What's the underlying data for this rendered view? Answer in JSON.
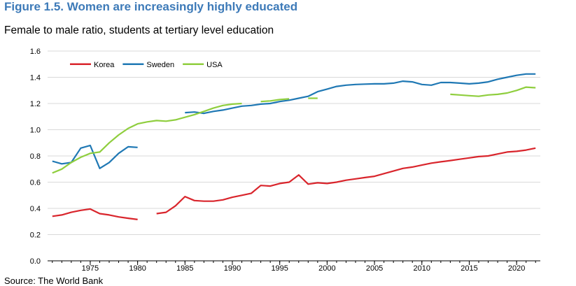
{
  "figure_title": "Figure 1.5. Women are increasingly highly educated",
  "subtitle": "Female to male ratio, students at tertiary level education",
  "source": "Source: The World Bank",
  "colors": {
    "Korea": "#d9252c",
    "Sweden": "#1f78b4",
    "USA": "#8fce3e",
    "grid": "#d9d9d9",
    "title": "#3d7ab8"
  },
  "chart_data": {
    "type": "line",
    "title": "Female to male ratio, students at tertiary level education",
    "xlabel": "",
    "ylabel": "",
    "xlim": [
      1971,
      2022
    ],
    "ylim": [
      0,
      1.6
    ],
    "yticks": [
      "0.0",
      "0.2",
      "0.4",
      "0.6",
      "0.8",
      "1.0",
      "1.2",
      "1.4",
      "1.6"
    ],
    "xticks": [
      "1975",
      "1980",
      "1985",
      "1990",
      "1995",
      "2000",
      "2005",
      "2010",
      "2015",
      "2020"
    ],
    "grid": true,
    "legend": "top-left",
    "series": [
      {
        "name": "Korea",
        "segments": [
          {
            "x": [
              1971,
              1972,
              1973,
              1974,
              1975,
              1976,
              1977,
              1978,
              1979,
              1980
            ],
            "y": [
              0.34,
              0.35,
              0.37,
              0.385,
              0.395,
              0.36,
              0.35,
              0.335,
              0.325,
              0.315
            ]
          },
          {
            "x": [
              1982,
              1983,
              1984,
              1985,
              1986,
              1987,
              1988,
              1989,
              1990,
              1991,
              1992,
              1993,
              1994,
              1995,
              1996,
              1997,
              1998,
              1999,
              2000,
              2001,
              2002,
              2003,
              2004,
              2005,
              2006,
              2007,
              2008,
              2009,
              2010,
              2011,
              2012,
              2013,
              2014,
              2015,
              2016,
              2017,
              2018,
              2019,
              2020,
              2021,
              2022
            ],
            "y": [
              0.36,
              0.37,
              0.42,
              0.49,
              0.46,
              0.455,
              0.455,
              0.465,
              0.485,
              0.5,
              0.515,
              0.575,
              0.57,
              0.59,
              0.6,
              0.655,
              0.585,
              0.595,
              0.59,
              0.6,
              0.615,
              0.625,
              0.635,
              0.645,
              0.665,
              0.685,
              0.705,
              0.715,
              0.73,
              0.745,
              0.755,
              0.765,
              0.775,
              0.785,
              0.795,
              0.8,
              0.815,
              0.83,
              0.835,
              0.845,
              0.86
            ]
          }
        ]
      },
      {
        "name": "Sweden",
        "segments": [
          {
            "x": [
              1971,
              1972,
              1973,
              1974,
              1975,
              1976,
              1977,
              1978,
              1979,
              1980
            ],
            "y": [
              0.76,
              0.74,
              0.75,
              0.86,
              0.88,
              0.705,
              0.75,
              0.82,
              0.87,
              0.865
            ]
          },
          {
            "x": [
              1985,
              1986,
              1987,
              1988,
              1989,
              1990,
              1991,
              1992,
              1993,
              1994,
              1995,
              1996,
              1997,
              1998,
              1999,
              2000,
              2001,
              2002,
              2003,
              2004,
              2005,
              2006,
              2007,
              2008,
              2009,
              2010,
              2011,
              2012,
              2013,
              2014,
              2015,
              2016,
              2017,
              2018,
              2019,
              2020,
              2021,
              2022
            ],
            "y": [
              1.13,
              1.135,
              1.125,
              1.14,
              1.15,
              1.165,
              1.18,
              1.185,
              1.195,
              1.2,
              1.215,
              1.225,
              1.24,
              1.255,
              1.29,
              1.31,
              1.33,
              1.34,
              1.345,
              1.348,
              1.35,
              1.35,
              1.355,
              1.37,
              1.365,
              1.345,
              1.34,
              1.36,
              1.36,
              1.355,
              1.35,
              1.355,
              1.365,
              1.385,
              1.4,
              1.415,
              1.425,
              1.425
            ]
          }
        ]
      },
      {
        "name": "USA",
        "segments": [
          {
            "x": [
              1971,
              1972,
              1973,
              1974,
              1975,
              1976,
              1977,
              1978,
              1979,
              1980,
              1981,
              1982,
              1983,
              1984,
              1985,
              1986,
              1987,
              1988,
              1989,
              1990,
              1991
            ],
            "y": [
              0.67,
              0.7,
              0.75,
              0.79,
              0.82,
              0.83,
              0.9,
              0.96,
              1.01,
              1.045,
              1.06,
              1.07,
              1.065,
              1.075,
              1.095,
              1.115,
              1.14,
              1.165,
              1.185,
              1.195,
              1.2
            ]
          },
          {
            "x": [
              1993,
              1994,
              1995,
              1996
            ],
            "y": [
              1.215,
              1.22,
              1.23,
              1.235
            ]
          },
          {
            "x": [
              1998,
              1999
            ],
            "y": [
              1.24,
              1.24
            ]
          },
          {
            "x": [
              2013,
              2014,
              2015,
              2016,
              2017,
              2018,
              2019,
              2020,
              2021,
              2022
            ],
            "y": [
              1.27,
              1.265,
              1.26,
              1.255,
              1.265,
              1.27,
              1.28,
              1.3,
              1.325,
              1.32
            ]
          }
        ]
      }
    ]
  }
}
